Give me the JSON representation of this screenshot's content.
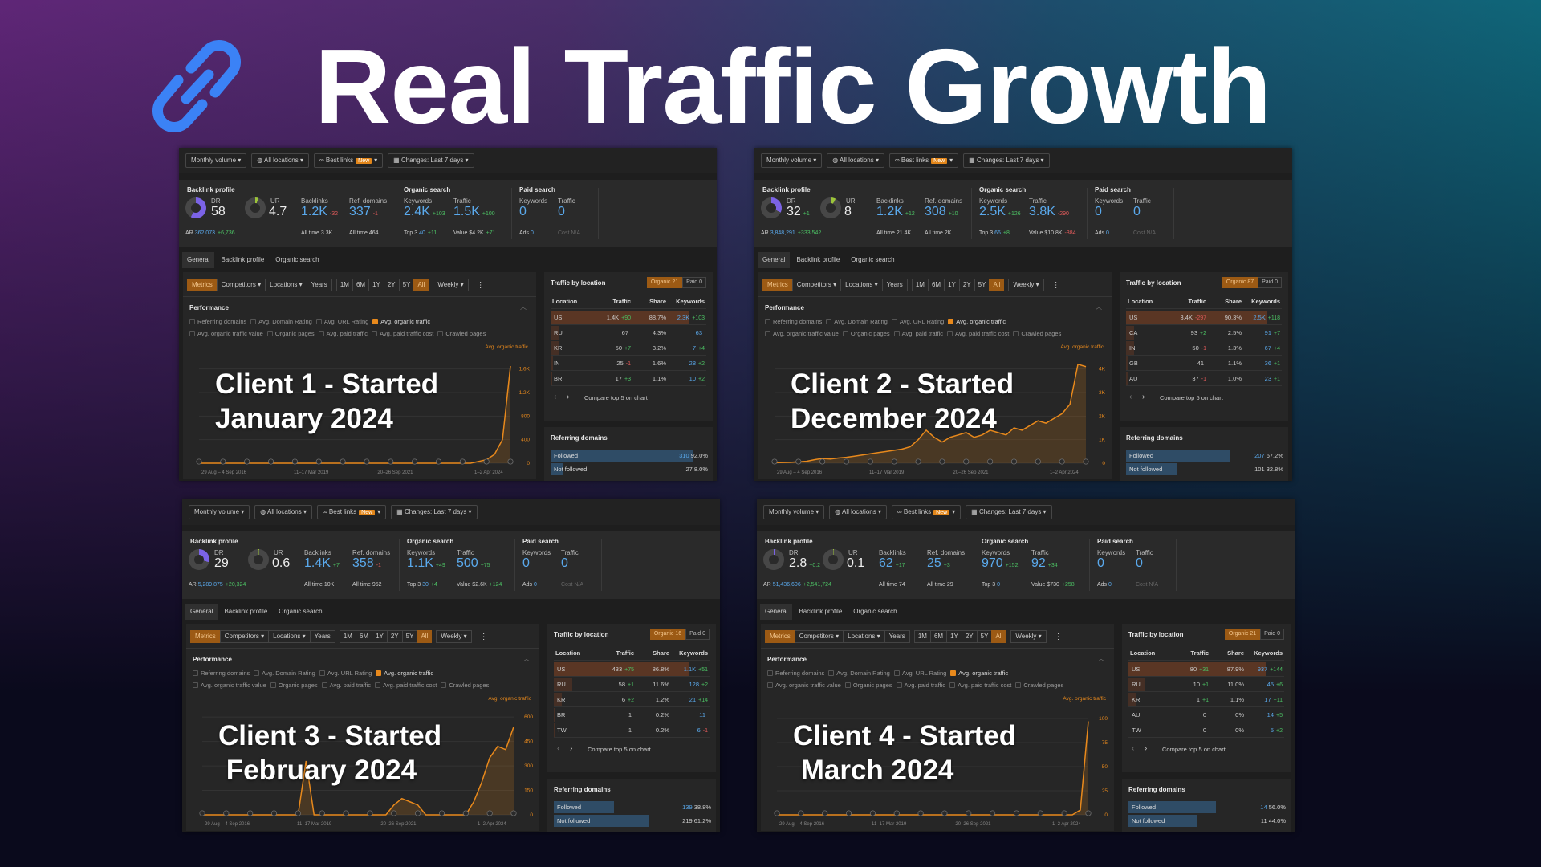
{
  "title": "Real Traffic Growth",
  "labels": {
    "monthly_volume": "Monthly volume ▾",
    "all_locations": "All locations ▾",
    "best_links": "Best links",
    "new_badge": "New",
    "changes": "Changes: Last 7 days ▾",
    "backlink_profile": "Backlink profile",
    "organic_search": "Organic search",
    "paid_search": "Paid search",
    "dr": "DR",
    "ur": "UR",
    "ar": "AR",
    "backlinks": "Backlinks",
    "ref_domains": "Ref. domains",
    "keywords": "Keywords",
    "traffic": "Traffic",
    "top3": "Top 3",
    "value": "Value",
    "ads": "Ads",
    "cost": "Cost",
    "tabs": [
      "General",
      "Backlink profile",
      "Organic search"
    ],
    "metrics": "Metrics",
    "competitors": "Competitors ▾",
    "locations": "Locations ▾",
    "years": "Years",
    "ranges": [
      "1M",
      "6M",
      "1Y",
      "2Y",
      "5Y",
      "All"
    ],
    "weekly": "Weekly ▾",
    "more": "⋮",
    "performance": "Performance",
    "collapse": "︿",
    "checks_row1": [
      "Referring domains",
      "Avg. Domain Rating",
      "Avg. URL Rating",
      "Avg. organic traffic"
    ],
    "checks_row2": [
      "Avg. organic traffic value",
      "Organic pages",
      "Avg. paid traffic",
      "Avg. paid traffic cost",
      "Crawled pages"
    ],
    "legend": "Avg. organic traffic",
    "traffic_by_location": "Traffic by location",
    "organic": "Organic",
    "paid": "Paid",
    "col_location": "Location",
    "col_traffic": "Traffic",
    "col_share": "Share",
    "col_keywords": "Keywords",
    "prev": "‹",
    "next": "›",
    "compare": "Compare top 5 on chart",
    "referring_domains": "Referring domains",
    "followed": "Followed",
    "not_followed": "Not followed"
  },
  "colors": {
    "accent": "#e8891c",
    "link": "#5aa9ec",
    "positive": "#4cc264",
    "negative": "#e25b5b",
    "icon": "#3b82f6"
  },
  "clients": [
    {
      "overlay": "Client 1 - Started\nJanuary 2024",
      "dr": "58",
      "dr_delta": "",
      "dr_pct": 58,
      "ur": "4.7",
      "ur_pct": 4.7,
      "ar": "362,073",
      "ar_delta": "+6,736",
      "backlinks": "1.2K",
      "backlinks_delta": "-32",
      "backlinks_all": "All time 3.3K",
      "ref": "337",
      "ref_delta": "-1",
      "ref_all": "All time 464",
      "kw": "2.4K",
      "kw_delta": "+103",
      "top3": "40",
      "top3_delta": "+11",
      "traffic": "1.5K",
      "traffic_delta": "+100",
      "value": "$4.2K",
      "value_delta": "+71",
      "paid_kw": "0",
      "paid_traffic": "0",
      "ads": "0",
      "cost": "N/A",
      "organic_count": "21",
      "paid_count": "0",
      "locations": [
        {
          "loc": "US",
          "traffic": "1.4K",
          "td": "+90",
          "share": "88.7%",
          "share_pct": 88.7,
          "kw": "2.3K",
          "kd": "+103"
        },
        {
          "loc": "RU",
          "traffic": "67",
          "td": "",
          "share": "4.3%",
          "share_pct": 4.3,
          "kw": "63",
          "kd": ""
        },
        {
          "loc": "KR",
          "traffic": "50",
          "td": "+7",
          "share": "3.2%",
          "share_pct": 3.2,
          "kw": "7",
          "kd": "+4"
        },
        {
          "loc": "IN",
          "traffic": "25",
          "td": "-1",
          "share": "1.6%",
          "share_pct": 1.6,
          "kw": "28",
          "kd": "+2"
        },
        {
          "loc": "BR",
          "traffic": "17",
          "td": "+3",
          "share": "1.1%",
          "share_pct": 1.1,
          "kw": "10",
          "kd": "+2"
        }
      ],
      "followed": "310",
      "followed_pct": "92.0%",
      "followed_frac": 0.92,
      "not_followed": "27",
      "not_followed_pct": "8.0%",
      "not_followed_frac": 0.08
    },
    {
      "overlay": "Client 2 - Started\nDecember 2024",
      "dr": "32",
      "dr_delta": "+1",
      "dr_pct": 32,
      "ur": "8",
      "ur_pct": 8,
      "ar": "3,848,291",
      "ar_delta": "+333,542",
      "backlinks": "1.2K",
      "backlinks_delta": "+12",
      "backlinks_all": "All time 21.4K",
      "ref": "308",
      "ref_delta": "+10",
      "ref_all": "All time 2K",
      "kw": "2.5K",
      "kw_delta": "+126",
      "top3": "66",
      "top3_delta": "+8",
      "traffic": "3.8K",
      "traffic_delta": "-290",
      "value": "$10.8K",
      "value_delta": "-384",
      "paid_kw": "0",
      "paid_traffic": "0",
      "ads": "0",
      "cost": "N/A",
      "organic_count": "87",
      "paid_count": "0",
      "locations": [
        {
          "loc": "US",
          "traffic": "3.4K",
          "td": "-297",
          "share": "90.3%",
          "share_pct": 90.3,
          "kw": "2.5K",
          "kd": "+118"
        },
        {
          "loc": "CA",
          "traffic": "93",
          "td": "+2",
          "share": "2.5%",
          "share_pct": 2.5,
          "kw": "91",
          "kd": "+7"
        },
        {
          "loc": "IN",
          "traffic": "50",
          "td": "-1",
          "share": "1.3%",
          "share_pct": 1.3,
          "kw": "67",
          "kd": "+4"
        },
        {
          "loc": "GB",
          "traffic": "41",
          "td": "",
          "share": "1.1%",
          "share_pct": 1.1,
          "kw": "36",
          "kd": "+1"
        },
        {
          "loc": "AU",
          "traffic": "37",
          "td": "-1",
          "share": "1.0%",
          "share_pct": 1.0,
          "kw": "23",
          "kd": "+1"
        }
      ],
      "followed": "207",
      "followed_pct": "67.2%",
      "followed_frac": 0.672,
      "not_followed": "101",
      "not_followed_pct": "32.8%",
      "not_followed_frac": 0.328
    },
    {
      "overlay": "Client 3 - Started\n February 2024",
      "dr": "29",
      "dr_delta": "",
      "dr_pct": 29,
      "ur": "0.6",
      "ur_pct": 0.6,
      "ar": "5,289,875",
      "ar_delta": "+20,324",
      "backlinks": "1.4K",
      "backlinks_delta": "+7",
      "backlinks_all": "All time 10K",
      "ref": "358",
      "ref_delta": "-1",
      "ref_all": "All time 952",
      "kw": "1.1K",
      "kw_delta": "+49",
      "top3": "30",
      "top3_delta": "+4",
      "traffic": "500",
      "traffic_delta": "+75",
      "value": "$2.6K",
      "value_delta": "+124",
      "paid_kw": "0",
      "paid_traffic": "0",
      "ads": "0",
      "cost": "N/A",
      "organic_count": "16",
      "paid_count": "0",
      "locations": [
        {
          "loc": "US",
          "traffic": "433",
          "td": "+75",
          "share": "86.8%",
          "share_pct": 86.8,
          "kw": "1.1K",
          "kd": "+51"
        },
        {
          "loc": "RU",
          "traffic": "58",
          "td": "+1",
          "share": "11.6%",
          "share_pct": 11.6,
          "kw": "128",
          "kd": "+2"
        },
        {
          "loc": "KR",
          "traffic": "6",
          "td": "+2",
          "share": "1.2%",
          "share_pct": 1.2,
          "kw": "21",
          "kd": "+14"
        },
        {
          "loc": "BR",
          "traffic": "1",
          "td": "",
          "share": "0.2%",
          "share_pct": 0.2,
          "kw": "11",
          "kd": ""
        },
        {
          "loc": "TW",
          "traffic": "1",
          "td": "",
          "share": "0.2%",
          "share_pct": 0.2,
          "kw": "6",
          "kd": "-1"
        }
      ],
      "followed": "139",
      "followed_pct": "38.8%",
      "followed_frac": 0.388,
      "not_followed": "219",
      "not_followed_pct": "61.2%",
      "not_followed_frac": 0.612
    },
    {
      "overlay": "Client 4 - Started\n March 2024",
      "dr": "2.8",
      "dr_delta": "+0.2",
      "dr_pct": 2.8,
      "ur": "0.1",
      "ur_pct": 0.1,
      "ar": "51,436,606",
      "ar_delta": "+2,541,724",
      "backlinks": "62",
      "backlinks_delta": "+17",
      "backlinks_all": "All time 74",
      "ref": "25",
      "ref_delta": "+3",
      "ref_all": "All time 29",
      "kw": "970",
      "kw_delta": "+152",
      "top3": "0",
      "top3_delta": "",
      "traffic": "92",
      "traffic_delta": "+34",
      "value": "$730",
      "value_delta": "+258",
      "paid_kw": "0",
      "paid_traffic": "0",
      "ads": "0",
      "cost": "N/A",
      "organic_count": "21",
      "paid_count": "0",
      "locations": [
        {
          "loc": "US",
          "traffic": "80",
          "td": "+31",
          "share": "87.9%",
          "share_pct": 87.9,
          "kw": "937",
          "kd": "+144"
        },
        {
          "loc": "RU",
          "traffic": "10",
          "td": "+1",
          "share": "11.0%",
          "share_pct": 11.0,
          "kw": "45",
          "kd": "+6"
        },
        {
          "loc": "KR",
          "traffic": "1",
          "td": "+1",
          "share": "1.1%",
          "share_pct": 1.1,
          "kw": "17",
          "kd": "+11"
        },
        {
          "loc": "AU",
          "traffic": "0",
          "td": "",
          "share": "0%",
          "share_pct": 0,
          "kw": "14",
          "kd": "+5"
        },
        {
          "loc": "TW",
          "traffic": "0",
          "td": "",
          "share": "0%",
          "share_pct": 0,
          "kw": "5",
          "kd": "+2"
        }
      ],
      "followed": "14",
      "followed_pct": "56.0%",
      "followed_frac": 0.56,
      "not_followed": "11",
      "not_followed_pct": "44.0%",
      "not_followed_frac": 0.44
    }
  ],
  "chart_data": [
    {
      "type": "line",
      "series_name": "Avg. organic traffic",
      "x_ticks": [
        "29 Aug – 4 Sep 2016",
        "11–17 Mar 2019",
        "20–26 Sep 2021",
        "1–2 Apr 2024"
      ],
      "y_ticks": [
        0,
        400,
        800,
        1200,
        1600
      ],
      "y_tick_labels": [
        "0",
        "400",
        "800",
        "1.2K",
        "1.6K"
      ],
      "ylim": [
        0,
        1800
      ],
      "values": [
        0,
        0,
        0,
        0,
        0,
        0,
        0,
        0,
        0,
        0,
        0,
        0,
        0,
        0,
        0,
        0,
        0,
        0,
        0,
        0,
        0,
        0,
        0,
        0,
        0,
        0,
        0,
        0,
        0,
        0,
        0,
        0,
        0,
        0,
        0,
        30,
        60,
        150,
        400,
        1650
      ]
    },
    {
      "type": "line",
      "series_name": "Avg. organic traffic",
      "x_ticks": [
        "29 Aug – 4 Sep 2016",
        "11–17 Mar 2019",
        "20–26 Sep 2021",
        "1–2 Apr 2024"
      ],
      "y_ticks": [
        0,
        1000,
        2000,
        3000,
        4000
      ],
      "y_tick_labels": [
        "0",
        "1K",
        "2K",
        "3K",
        "4K"
      ],
      "ylim": [
        0,
        4500
      ],
      "values": [
        20,
        30,
        40,
        60,
        80,
        150,
        200,
        180,
        220,
        250,
        300,
        350,
        400,
        450,
        500,
        550,
        600,
        700,
        1000,
        1400,
        1100,
        900,
        1100,
        1200,
        1300,
        1100,
        1200,
        1400,
        1300,
        1200,
        1500,
        1400,
        1600,
        1800,
        1700,
        1900,
        2100,
        2500,
        4200,
        4100
      ]
    },
    {
      "type": "line",
      "series_name": "Avg. organic traffic",
      "x_ticks": [
        "29 Aug – 4 Sep 2016",
        "11–17 Mar 2019",
        "20–26 Sep 2021",
        "1–2 Apr 2024"
      ],
      "y_ticks": [
        0,
        150,
        300,
        450,
        600
      ],
      "y_tick_labels": [
        "0",
        "150",
        "300",
        "450",
        "600"
      ],
      "ylim": [
        0,
        650
      ],
      "values": [
        0,
        0,
        0,
        0,
        0,
        0,
        0,
        0,
        0,
        0,
        0,
        0,
        0,
        330,
        0,
        0,
        0,
        0,
        0,
        0,
        0,
        0,
        0,
        0,
        60,
        100,
        80,
        60,
        0,
        0,
        0,
        0,
        0,
        0,
        80,
        200,
        350,
        420,
        400,
        540
      ]
    },
    {
      "type": "line",
      "series_name": "Avg. organic traffic",
      "x_ticks": [
        "29 Aug – 4 Sep 2016",
        "11–17 Mar 2019",
        "20–26 Sep 2021",
        "1–2 Apr 2024"
      ],
      "y_ticks": [
        0,
        25,
        50,
        75,
        100
      ],
      "y_tick_labels": [
        "0",
        "25",
        "50",
        "75",
        "100"
      ],
      "ylim": [
        0,
        110
      ],
      "values": [
        0,
        0,
        0,
        0,
        0,
        0,
        0,
        0,
        0,
        0,
        0,
        0,
        0,
        0,
        0,
        0,
        0,
        0,
        0,
        0,
        0,
        0,
        0,
        0,
        0,
        0,
        0,
        0,
        0,
        0,
        0,
        0,
        0,
        0,
        0,
        0,
        0,
        0,
        5,
        97
      ]
    }
  ]
}
